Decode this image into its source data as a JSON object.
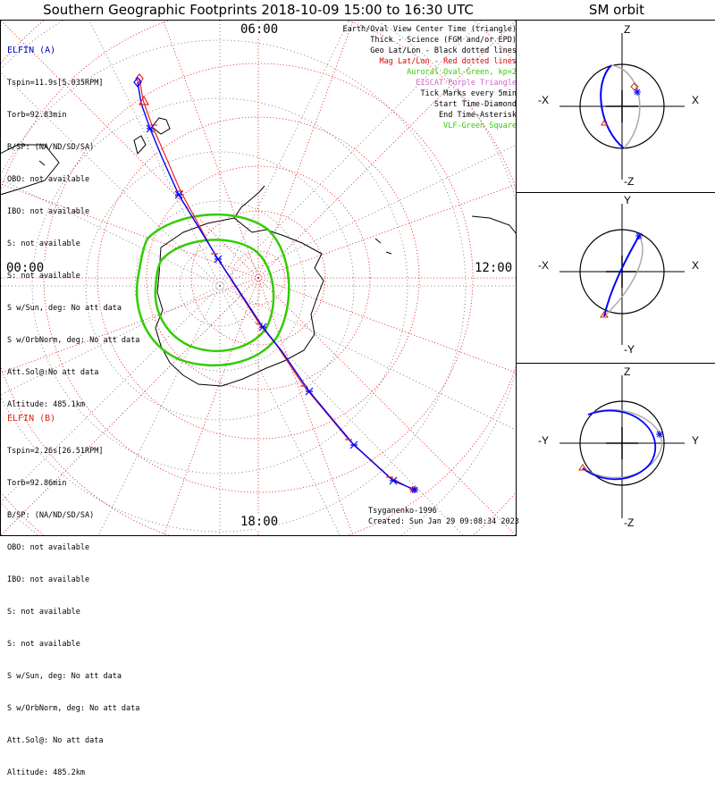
{
  "title": "Southern Geographic Footprints 2018-10-09 15:00 to 16:30 UTC",
  "sm_title": "SM orbit",
  "elfin_a": {
    "name": "ELFIN (A)",
    "color": "#0000cc",
    "lines": [
      "Tspin=11.9s[5.035RPM]",
      "Torb=92.83min",
      "B/SP: (NA/ND/SD/SA)",
      "OBO: not available",
      "IBO: not available",
      "S: not available",
      "S: not available",
      "S w/Sun, deg: No att data",
      "S w/OrbNorm, deg: No att data",
      "Att.Sol@:No att data",
      "Altitude: 485.1km"
    ]
  },
  "elfin_b": {
    "name": "ELFIN (B)",
    "color": "#dd2200",
    "lines": [
      "Tspin=2.26s[26.51RPM]",
      "Torb=92.86min",
      "B/SP: (NA/ND/SD/SA)",
      "OBO: not available",
      "IBO: not available",
      "S: not available",
      "S: not available",
      "S w/Sun, deg: No att data",
      "S w/OrbNorm, deg: No att data",
      "Att.Sol@: No att data",
      "Altitude: 485.2km"
    ]
  },
  "legend": [
    {
      "text": "Earth/Oval View Center Time (triangle)",
      "color": "#000000"
    },
    {
      "text": "Thick - Science (FGM and/or EPD)",
      "color": "#000000"
    },
    {
      "text": "Geo Lat/Lon - Black dotted lines",
      "color": "#000000"
    },
    {
      "text": "Mag Lat/Lon - Red dotted lines",
      "color": "#dd0000"
    },
    {
      "text": "Auroral Oval-Green, kp=2",
      "color": "#33cc00"
    },
    {
      "text": "EISCAT-Purple Triangle",
      "color": "#cc66cc"
    },
    {
      "text": "Tick Marks every 5min",
      "color": "#000000"
    },
    {
      "text": "Start Time-Diamond",
      "color": "#000000"
    },
    {
      "text": "End Time-Asterisk",
      "color": "#000000"
    },
    {
      "text": "VLF-Green Square",
      "color": "#33cc00"
    }
  ],
  "time_labels": {
    "top": "06:00",
    "left": "00:00",
    "right": "12:00",
    "bottom": "18:00"
  },
  "credits": {
    "model": "Tsyganenko-1996",
    "created": "Created: Sun Jan 29 09:08:34 2023"
  },
  "sm_panels": [
    {
      "top": "Z",
      "bottom": "-Z",
      "left": "-X",
      "right": "X"
    },
    {
      "top": "Y",
      "bottom": "-Y",
      "left": "-X",
      "right": "X"
    },
    {
      "top": "Z",
      "bottom": "-Z",
      "left": "-Y",
      "right": "Y"
    }
  ],
  "colors": {
    "elfin_a_track": "#0000ff",
    "elfin_b_track": "#ee2222",
    "mag_grid": "#dd0000",
    "geo_grid": "#555555",
    "auroral_oval": "#33cc00"
  }
}
